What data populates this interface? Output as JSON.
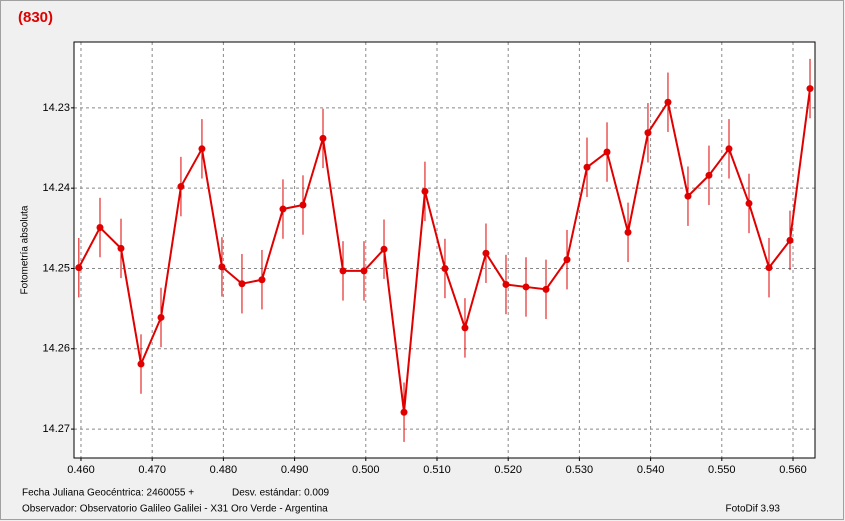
{
  "chart_data": {
    "type": "line",
    "title": "(830)",
    "y_label": "Fotometría absoluta",
    "x": [
      0.4597,
      0.46267,
      0.46562,
      0.46843,
      0.47124,
      0.47404,
      0.47699,
      0.4798,
      0.48261,
      0.48542,
      0.48837,
      0.49118,
      0.49399,
      0.4968,
      0.49975,
      0.50256,
      0.50537,
      0.50831,
      0.51112,
      0.51393,
      0.51688,
      0.51969,
      0.5225,
      0.52531,
      0.52826,
      0.53107,
      0.53388,
      0.53683,
      0.53963,
      0.54244,
      0.54525,
      0.5482,
      0.55101,
      0.55382,
      0.55663,
      0.55958,
      0.56239
    ],
    "series": [
      {
        "color": "#e00000",
        "values": [
          14.2499,
          14.2449,
          14.2475,
          14.2619,
          14.2561,
          14.2398,
          14.2351,
          14.2498,
          14.2519,
          14.2514,
          14.2426,
          14.2421,
          14.2338,
          14.2503,
          14.2503,
          14.2476,
          14.2679,
          14.2404,
          14.25,
          14.2574,
          14.2481,
          14.252,
          14.2523,
          14.2526,
          14.2489,
          14.2374,
          14.2355,
          14.2455,
          14.2331,
          14.2293,
          14.241,
          14.2384,
          14.2351,
          14.2419,
          14.2499,
          14.2465,
          14.2276
        ],
        "errors": [
          0.0037,
          0.0037,
          0.0037,
          0.0037,
          0.0037,
          0.0037,
          0.0037,
          0.0037,
          0.0037,
          0.0037,
          0.0037,
          0.0037,
          0.0037,
          0.0037,
          0.0037,
          0.0037,
          0.0037,
          0.0037,
          0.0037,
          0.0037,
          0.0037,
          0.0037,
          0.0037,
          0.0037,
          0.0037,
          0.0037,
          0.0037,
          0.0037,
          0.0037,
          0.0037,
          0.0037,
          0.0037,
          0.0037,
          0.0037,
          0.0037,
          0.0037,
          0.0037
        ]
      }
    ],
    "xlim": [
      0.45902,
      0.56309
    ],
    "ylim": [
      14.2218,
      14.2736
    ],
    "y_inverted": true,
    "xticks": [
      {
        "value": 0.46,
        "label": "0.460"
      },
      {
        "value": 0.47,
        "label": "0.470"
      },
      {
        "value": 0.48,
        "label": "0.480"
      },
      {
        "value": 0.49,
        "label": "0.490"
      },
      {
        "value": 0.5,
        "label": "0.500"
      },
      {
        "value": 0.51,
        "label": "0.510"
      },
      {
        "value": 0.52,
        "label": "0.520"
      },
      {
        "value": 0.53,
        "label": "0.530"
      },
      {
        "value": 0.54,
        "label": "0.540"
      },
      {
        "value": 0.55,
        "label": "0.550"
      },
      {
        "value": 0.56,
        "label": "0.560"
      }
    ],
    "yticks": [
      14.23,
      14.24,
      14.25,
      14.26,
      14.27
    ],
    "grid": true
  },
  "footer": {
    "date": "Fecha Juliana Geocéntrica: 2460055 +",
    "deviation": "Desv. estándar: 0.009",
    "observer": "Observador: Observatorio Galileo Galilei - X31 Oro Verde - Argentina",
    "software": "FotoDif 3.93"
  }
}
